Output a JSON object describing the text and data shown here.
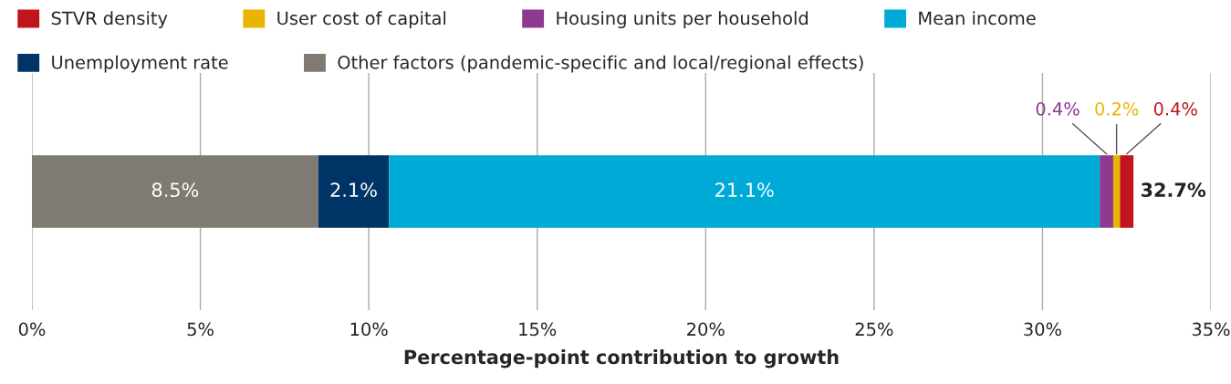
{
  "chart_data": {
    "type": "bar",
    "orientation": "horizontal",
    "stacked": true,
    "categories": [
      null
    ],
    "series": [
      {
        "name": "Other factors (pandemic-specific and local/regional effects)",
        "color": "#7f7b72",
        "values": [
          8.5
        ],
        "value_labels": [
          "8.5%"
        ]
      },
      {
        "name": "Unemployment rate",
        "color": "#003366",
        "values": [
          2.1
        ],
        "value_labels": [
          "2.1%"
        ]
      },
      {
        "name": "Mean income",
        "color": "#00aad7",
        "values": [
          21.1
        ],
        "value_labels": [
          "21.1%"
        ]
      },
      {
        "name": "Housing units per household",
        "color": "#8c3b8f",
        "values": [
          0.4
        ],
        "value_labels": [
          "0.4%"
        ]
      },
      {
        "name": "User cost of capital",
        "color": "#e8b500",
        "values": [
          0.2
        ],
        "value_labels": [
          "0.2%"
        ]
      },
      {
        "name": "STVR density",
        "color": "#c0161b",
        "values": [
          0.4
        ],
        "value_labels": [
          "0.4%"
        ]
      }
    ],
    "totals": [
      "32.7%"
    ],
    "xlabel": "Percentage-point contribution to growth",
    "xlim": [
      0,
      35
    ],
    "xticks": [
      {
        "value": 0,
        "label": "0%"
      },
      {
        "value": 5,
        "label": "5%"
      },
      {
        "value": 10,
        "label": "10%"
      },
      {
        "value": 15,
        "label": "15%"
      },
      {
        "value": 20,
        "label": "20%"
      },
      {
        "value": 25,
        "label": "25%"
      },
      {
        "value": 30,
        "label": "30%"
      },
      {
        "value": 35,
        "label": "35%"
      }
    ],
    "grid": "x",
    "legend": "top"
  }
}
